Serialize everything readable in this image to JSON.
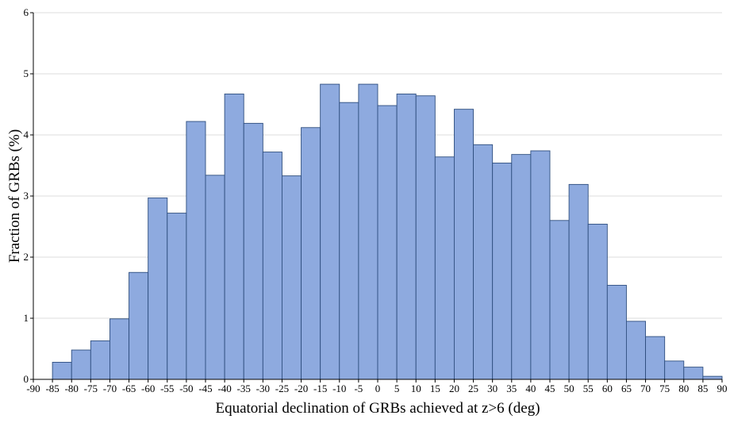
{
  "chart_data": {
    "type": "bar",
    "subtype": "histogram",
    "xlabel": "Equatorial declination of GRBs achieved at z>6 (deg)",
    "ylabel": "Fraction of GRBs (%)",
    "xlim": [
      -90,
      90
    ],
    "ylim": [
      0,
      6
    ],
    "bin_width": 5,
    "x_ticks": [
      "-90",
      "-85",
      "-80",
      "-75",
      "-70",
      "-65",
      "-60",
      "-55",
      "-50",
      "-45",
      "-40",
      "-35",
      "-30",
      "-25",
      "-20",
      "-15",
      "-10",
      "-5",
      "0",
      "5",
      "10",
      "15",
      "20",
      "25",
      "30",
      "35",
      "40",
      "45",
      "50",
      "55",
      "60",
      "65",
      "70",
      "75",
      "80",
      "85",
      "90"
    ],
    "y_ticks": [
      "0",
      "1",
      "2",
      "3",
      "4",
      "5",
      "6"
    ],
    "grid": "horizontal",
    "bins": [
      {
        "start": -85,
        "end": -80,
        "value": 0.28
      },
      {
        "start": -80,
        "end": -75,
        "value": 0.48
      },
      {
        "start": -75,
        "end": -70,
        "value": 0.63
      },
      {
        "start": -70,
        "end": -65,
        "value": 0.99
      },
      {
        "start": -65,
        "end": -60,
        "value": 1.75
      },
      {
        "start": -60,
        "end": -55,
        "value": 2.97
      },
      {
        "start": -55,
        "end": -50,
        "value": 2.72
      },
      {
        "start": -50,
        "end": -45,
        "value": 4.22
      },
      {
        "start": -45,
        "end": -40,
        "value": 3.34
      },
      {
        "start": -40,
        "end": -35,
        "value": 4.67
      },
      {
        "start": -35,
        "end": -30,
        "value": 4.19
      },
      {
        "start": -30,
        "end": -25,
        "value": 3.72
      },
      {
        "start": -25,
        "end": -20,
        "value": 3.33
      },
      {
        "start": -20,
        "end": -15,
        "value": 4.12
      },
      {
        "start": -15,
        "end": -10,
        "value": 4.83
      },
      {
        "start": -10,
        "end": -5,
        "value": 4.53
      },
      {
        "start": -5,
        "end": 0,
        "value": 4.83
      },
      {
        "start": 0,
        "end": 5,
        "value": 4.48
      },
      {
        "start": 5,
        "end": 10,
        "value": 4.67
      },
      {
        "start": 10,
        "end": 15,
        "value": 4.64
      },
      {
        "start": 15,
        "end": 20,
        "value": 3.64
      },
      {
        "start": 20,
        "end": 25,
        "value": 4.42
      },
      {
        "start": 25,
        "end": 30,
        "value": 3.84
      },
      {
        "start": 30,
        "end": 35,
        "value": 3.54
      },
      {
        "start": 35,
        "end": 40,
        "value": 3.68
      },
      {
        "start": 40,
        "end": 45,
        "value": 3.74
      },
      {
        "start": 45,
        "end": 50,
        "value": 2.6
      },
      {
        "start": 50,
        "end": 55,
        "value": 3.19
      },
      {
        "start": 55,
        "end": 60,
        "value": 2.54
      },
      {
        "start": 60,
        "end": 65,
        "value": 1.54
      },
      {
        "start": 65,
        "end": 70,
        "value": 0.95
      },
      {
        "start": 70,
        "end": 75,
        "value": 0.7
      },
      {
        "start": 75,
        "end": 80,
        "value": 0.3
      },
      {
        "start": 80,
        "end": 85,
        "value": 0.2
      },
      {
        "start": 85,
        "end": 90,
        "value": 0.05
      }
    ],
    "colors": {
      "bar_fill": "#8eaadf",
      "bar_stroke": "#2f4f7f",
      "grid": "#dcdcdc",
      "axis": "#000000"
    }
  }
}
